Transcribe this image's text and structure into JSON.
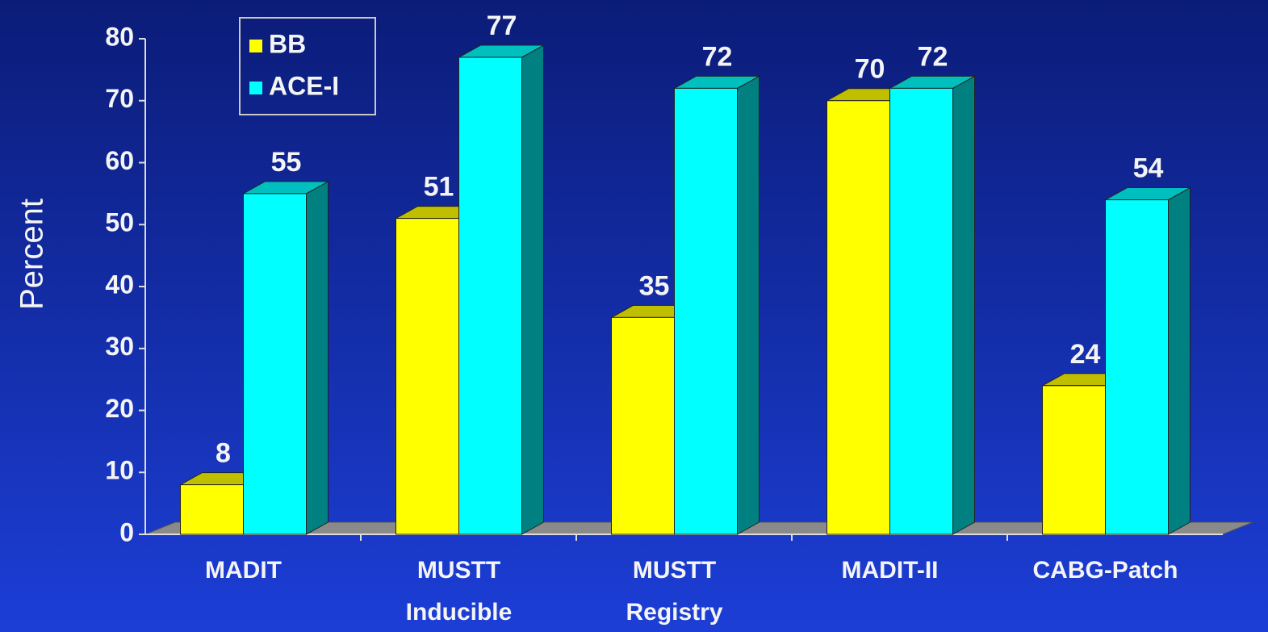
{
  "chart_data": {
    "type": "bar3d",
    "categories": [
      [
        "MADIT"
      ],
      [
        "MUSTT",
        "Inducible"
      ],
      [
        "MUSTT",
        "Registry"
      ],
      [
        "MADIT-II"
      ],
      [
        "CABG-Patch"
      ]
    ],
    "series": [
      {
        "name": "BB",
        "color": "#ffff00",
        "values": [
          8,
          51,
          35,
          70,
          24
        ]
      },
      {
        "name": "ACE-I",
        "color": "#00ffff",
        "values": [
          55,
          77,
          72,
          72,
          54
        ]
      }
    ],
    "ylabel": "Percent",
    "ylim": [
      0,
      80
    ],
    "yticks": [
      0,
      10,
      20,
      30,
      40,
      50,
      60,
      70,
      80
    ],
    "legend": "top-left"
  }
}
